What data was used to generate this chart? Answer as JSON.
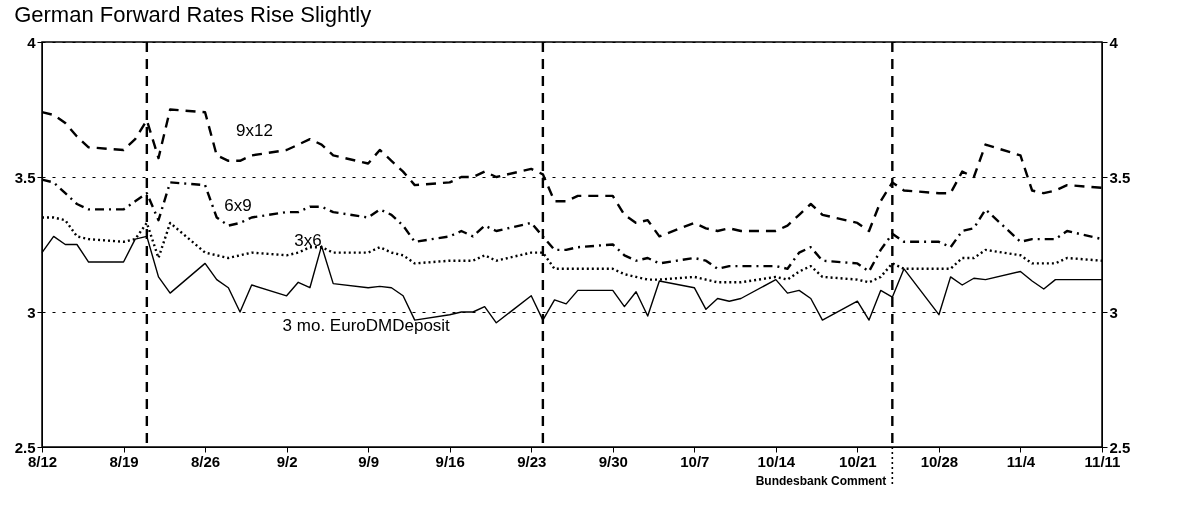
{
  "chart_data": {
    "type": "line",
    "title": "German Forward Rates Rise Slightly",
    "x": [
      "--08-12",
      "--08-13",
      "--08-14",
      "--08-15",
      "--08-16",
      "--08-19",
      "--08-20",
      "--08-21",
      "--08-22",
      "--08-23",
      "--08-26",
      "--08-27",
      "--08-28",
      "--08-29",
      "--08-30",
      "--09-02",
      "--09-03",
      "--09-04",
      "--09-05",
      "--09-06",
      "--09-09",
      "--09-10",
      "--09-11",
      "--09-12",
      "--09-13",
      "--09-16",
      "--09-17",
      "--09-18",
      "--09-19",
      "--09-20",
      "--09-23",
      "--09-24",
      "--09-25",
      "--09-26",
      "--09-27",
      "--09-30",
      "--10-01",
      "--10-02",
      "--10-03",
      "--10-04",
      "--10-07",
      "--10-08",
      "--10-09",
      "--10-10",
      "--10-11",
      "--10-14",
      "--10-15",
      "--10-16",
      "--10-17",
      "--10-18",
      "--10-21",
      "--10-22",
      "--10-23",
      "--10-24",
      "--10-25",
      "--10-28",
      "--10-29",
      "--10-30",
      "--10-31",
      "--11-01",
      "--11-04",
      "--11-05",
      "--11-06",
      "--11-07",
      "--11-08",
      "--11-11"
    ],
    "series": [
      {
        "name": "9x12",
        "color": "#000000",
        "line_style": "dashed",
        "values": [
          3.74,
          3.73,
          3.7,
          3.65,
          3.61,
          3.6,
          3.64,
          3.71,
          3.57,
          3.75,
          3.74,
          3.58,
          3.56,
          3.56,
          3.58,
          3.6,
          3.62,
          3.64,
          3.62,
          3.58,
          3.55,
          3.6,
          3.56,
          3.52,
          3.47,
          3.48,
          3.5,
          3.5,
          3.52,
          3.5,
          3.53,
          3.51,
          3.41,
          3.41,
          3.43,
          3.43,
          3.36,
          3.33,
          3.34,
          3.28,
          3.33,
          3.31,
          3.3,
          3.31,
          3.3,
          3.3,
          3.32,
          3.36,
          3.4,
          3.36,
          3.33,
          3.3,
          3.41,
          3.48,
          3.45,
          3.44,
          3.44,
          3.52,
          3.5,
          3.62,
          3.58,
          3.45,
          3.44,
          3.45,
          3.47,
          3.46
        ]
      },
      {
        "name": "6x9",
        "color": "#000000",
        "line_style": "dashdot",
        "values": [
          3.49,
          3.48,
          3.44,
          3.4,
          3.38,
          3.38,
          3.41,
          3.44,
          3.34,
          3.48,
          3.47,
          3.35,
          3.32,
          3.33,
          3.35,
          3.37,
          3.37,
          3.39,
          3.39,
          3.37,
          3.35,
          3.38,
          3.36,
          3.32,
          3.26,
          3.28,
          3.3,
          3.28,
          3.32,
          3.3,
          3.33,
          3.28,
          3.23,
          3.23,
          3.24,
          3.25,
          3.21,
          3.19,
          3.2,
          3.18,
          3.2,
          3.19,
          3.16,
          3.17,
          3.17,
          3.17,
          3.16,
          3.22,
          3.24,
          3.19,
          3.18,
          3.15,
          3.23,
          3.29,
          3.26,
          3.26,
          3.24,
          3.3,
          3.31,
          3.38,
          3.26,
          3.27,
          3.27,
          3.27,
          3.3,
          3.27
        ]
      },
      {
        "name": "3x6",
        "color": "#000000",
        "line_style": "dotted",
        "values": [
          3.35,
          3.35,
          3.34,
          3.28,
          3.27,
          3.26,
          3.27,
          3.33,
          3.2,
          3.33,
          3.22,
          3.21,
          3.2,
          3.21,
          3.22,
          3.21,
          3.22,
          3.24,
          3.24,
          3.22,
          3.22,
          3.24,
          3.22,
          3.21,
          3.18,
          3.19,
          3.19,
          3.19,
          3.21,
          3.19,
          3.22,
          3.22,
          3.16,
          3.16,
          3.16,
          3.16,
          3.14,
          3.13,
          3.12,
          3.12,
          3.13,
          3.12,
          3.11,
          3.11,
          3.11,
          3.13,
          3.12,
          3.15,
          3.17,
          3.13,
          3.12,
          3.11,
          3.13,
          3.18,
          3.16,
          3.16,
          3.16,
          3.2,
          3.2,
          3.23,
          3.21,
          3.18,
          3.18,
          3.18,
          3.2,
          3.19
        ]
      },
      {
        "name": "3 mo. EuroDMDeposit",
        "color": "#000000",
        "line_style": "solid",
        "values": [
          3.22,
          3.28,
          3.25,
          3.25,
          3.185,
          3.185,
          3.27,
          3.28,
          3.13,
          3.07,
          3.18,
          3.12,
          3.09,
          3.0,
          3.1,
          3.06,
          3.11,
          3.09,
          3.245,
          3.105,
          3.09,
          3.095,
          3.09,
          3.06,
          2.97,
          2.99,
          3.0,
          3.0,
          3.02,
          2.96,
          3.06,
          2.97,
          3.045,
          3.03,
          3.08,
          3.08,
          3.02,
          3.075,
          2.985,
          3.115,
          3.09,
          3.01,
          3.05,
          3.04,
          3.05,
          3.12,
          3.07,
          3.08,
          3.05,
          2.97,
          3.04,
          2.97,
          3.08,
          3.055,
          3.16,
          2.99,
          3.13,
          3.1,
          3.125,
          3.12,
          3.15,
          3.115,
          3.085,
          3.12,
          3.12,
          3.12
        ]
      }
    ],
    "xlim": [
      "--08-12",
      "--11-11"
    ],
    "xticks": [
      {
        "value": "--08-12",
        "label": "8/12"
      },
      {
        "value": "--08-19",
        "label": "8/19"
      },
      {
        "value": "--08-26",
        "label": "8/26"
      },
      {
        "value": "--09-02",
        "label": "9/2"
      },
      {
        "value": "--09-09",
        "label": "9/9"
      },
      {
        "value": "--09-16",
        "label": "9/16"
      },
      {
        "value": "--09-23",
        "label": "9/23"
      },
      {
        "value": "--09-30",
        "label": "9/30"
      },
      {
        "value": "--10-07",
        "label": "10/7"
      },
      {
        "value": "--10-14",
        "label": "10/14"
      },
      {
        "value": "--10-21",
        "label": "10/21"
      },
      {
        "value": "--10-28",
        "label": "10/28"
      },
      {
        "value": "--11-04",
        "label": "11/4"
      },
      {
        "value": "--11-11",
        "label": "11/11"
      }
    ],
    "ylim": [
      2.5,
      4
    ],
    "yticks": [
      2.5,
      3,
      3.5,
      4
    ],
    "y2lim": [
      2.5,
      4
    ],
    "y2ticks": [
      2.5,
      3,
      3.5,
      4
    ],
    "ref_lines": [
      {
        "axis": "x",
        "value": "--08-21",
        "color": "#000000",
        "line_style": "dashed"
      },
      {
        "axis": "x",
        "value": "--09-24",
        "color": "#000000",
        "line_style": "dashed"
      },
      {
        "axis": "x",
        "value": "--10-24",
        "color": "#000000",
        "line_style": "dashed",
        "label": "Bundesbank Comment"
      }
    ],
    "grid": "y",
    "marker": "none"
  }
}
